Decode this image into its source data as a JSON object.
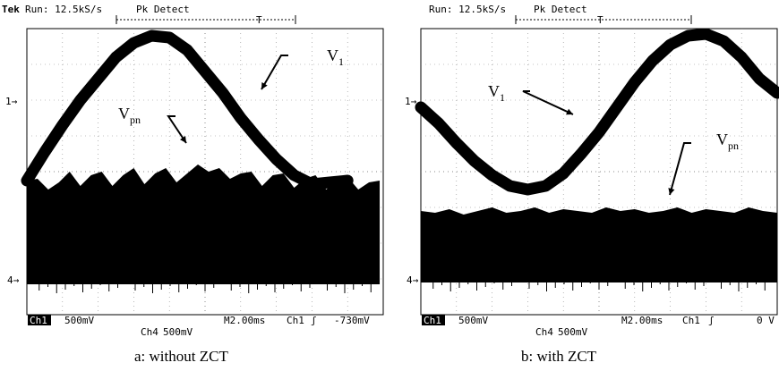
{
  "chart_data": [
    {
      "type": "line",
      "caption": "a: without ZCT",
      "header": {
        "brand": "Tek",
        "run": "Run: 12.5kS/s",
        "mode": "Pk Detect"
      },
      "footer": {
        "ch1": "Ch1",
        "ch1_scale": "500mV",
        "ch4": "Ch4",
        "ch4_scale": "500mV",
        "timebase": "M2.00ms",
        "trigger_src": "Ch1",
        "trigger_slope": "ʃ",
        "trigger_level": "-730mV"
      },
      "markers": {
        "ch1": "1→",
        "ch4": "4→"
      },
      "grid": {
        "divisions_x": 10,
        "divisions_y": 8,
        "dotted": true
      },
      "series": [
        {
          "name": "V1",
          "label_main": "V",
          "label_sub": "1",
          "color": "#000000",
          "x_div": [
            0,
            0.5,
            1,
            1.5,
            2,
            2.5,
            3,
            3.5,
            4,
            4.5,
            5,
            5.5,
            6,
            6.5,
            7,
            7.5,
            8,
            8.5,
            9
          ],
          "y_div": [
            3.75,
            4.55,
            5.3,
            6,
            6.6,
            7.2,
            7.6,
            7.8,
            7.75,
            7.4,
            6.8,
            6.2,
            5.5,
            4.9,
            4.35,
            3.9,
            3.65,
            3.7,
            3.75
          ]
        },
        {
          "name": "Vpn",
          "label_main": "V",
          "label_sub": "pn",
          "color": "#000000",
          "x_div": [
            0,
            0.3,
            0.6,
            0.9,
            1.2,
            1.5,
            1.8,
            2.1,
            2.4,
            2.7,
            3,
            3.3,
            3.6,
            3.9,
            4.2,
            4.5,
            4.8,
            5.1,
            5.4,
            5.7,
            6,
            6.3,
            6.6,
            6.9,
            7.2,
            7.5,
            7.8,
            8.1,
            8.4,
            8.7,
            9,
            9.3,
            9.6,
            9.9
          ],
          "y_div": [
            3.75,
            3.8,
            3.5,
            3.7,
            4.0,
            3.6,
            3.9,
            4.0,
            3.6,
            3.9,
            4.1,
            3.65,
            3.95,
            4.1,
            3.7,
            3.95,
            4.2,
            4.0,
            4.1,
            3.8,
            3.95,
            4.0,
            3.6,
            3.9,
            3.95,
            3.55,
            3.8,
            3.9,
            3.5,
            3.75,
            3.85,
            3.5,
            3.7,
            3.75
          ],
          "y_bottom_div": 0.85
        }
      ]
    },
    {
      "type": "line",
      "caption": "b: with ZCT",
      "header": {
        "brand": "",
        "run": "Run: 12.5kS/s",
        "mode": "Pk Detect"
      },
      "footer": {
        "ch1": "Ch1",
        "ch1_scale": "500mV",
        "ch4": "Ch4",
        "ch4_scale": "500mV",
        "timebase": "M2.00ms",
        "trigger_src": "Ch1",
        "trigger_slope": "ʃ",
        "trigger_level": "0 V"
      },
      "markers": {
        "ch1": "1→",
        "ch4": "4→"
      },
      "grid": {
        "divisions_x": 10,
        "divisions_y": 8,
        "dotted": true
      },
      "series": [
        {
          "name": "V1",
          "label_main": "V",
          "label_sub": "1",
          "color": "#000000",
          "x_div": [
            0,
            0.5,
            1,
            1.5,
            2,
            2.5,
            3,
            3.5,
            4,
            4.5,
            5,
            5.5,
            6,
            6.5,
            7,
            7.5,
            8,
            8.5,
            9,
            9.5,
            10
          ],
          "y_div": [
            5.8,
            5.35,
            4.8,
            4.3,
            3.9,
            3.6,
            3.5,
            3.6,
            3.95,
            4.5,
            5.1,
            5.8,
            6.5,
            7.1,
            7.55,
            7.8,
            7.85,
            7.65,
            7.2,
            6.6,
            6.2
          ]
        },
        {
          "name": "Vpn",
          "label_main": "V",
          "label_sub": "pn",
          "color": "#000000",
          "x_div": [
            0,
            0.4,
            0.8,
            1.2,
            1.6,
            2,
            2.4,
            2.8,
            3.2,
            3.6,
            4,
            4.4,
            4.8,
            5.2,
            5.6,
            6,
            6.4,
            6.8,
            7.2,
            7.6,
            8,
            8.4,
            8.8,
            9.2,
            9.6,
            10
          ],
          "y_div": [
            2.9,
            2.85,
            2.95,
            2.8,
            2.9,
            3.0,
            2.85,
            2.9,
            3.0,
            2.85,
            2.95,
            2.9,
            2.85,
            3.0,
            2.9,
            2.95,
            2.85,
            2.9,
            3.0,
            2.85,
            2.95,
            2.9,
            2.85,
            3.0,
            2.9,
            2.85
          ],
          "y_bottom_div": 0.9
        }
      ]
    }
  ]
}
